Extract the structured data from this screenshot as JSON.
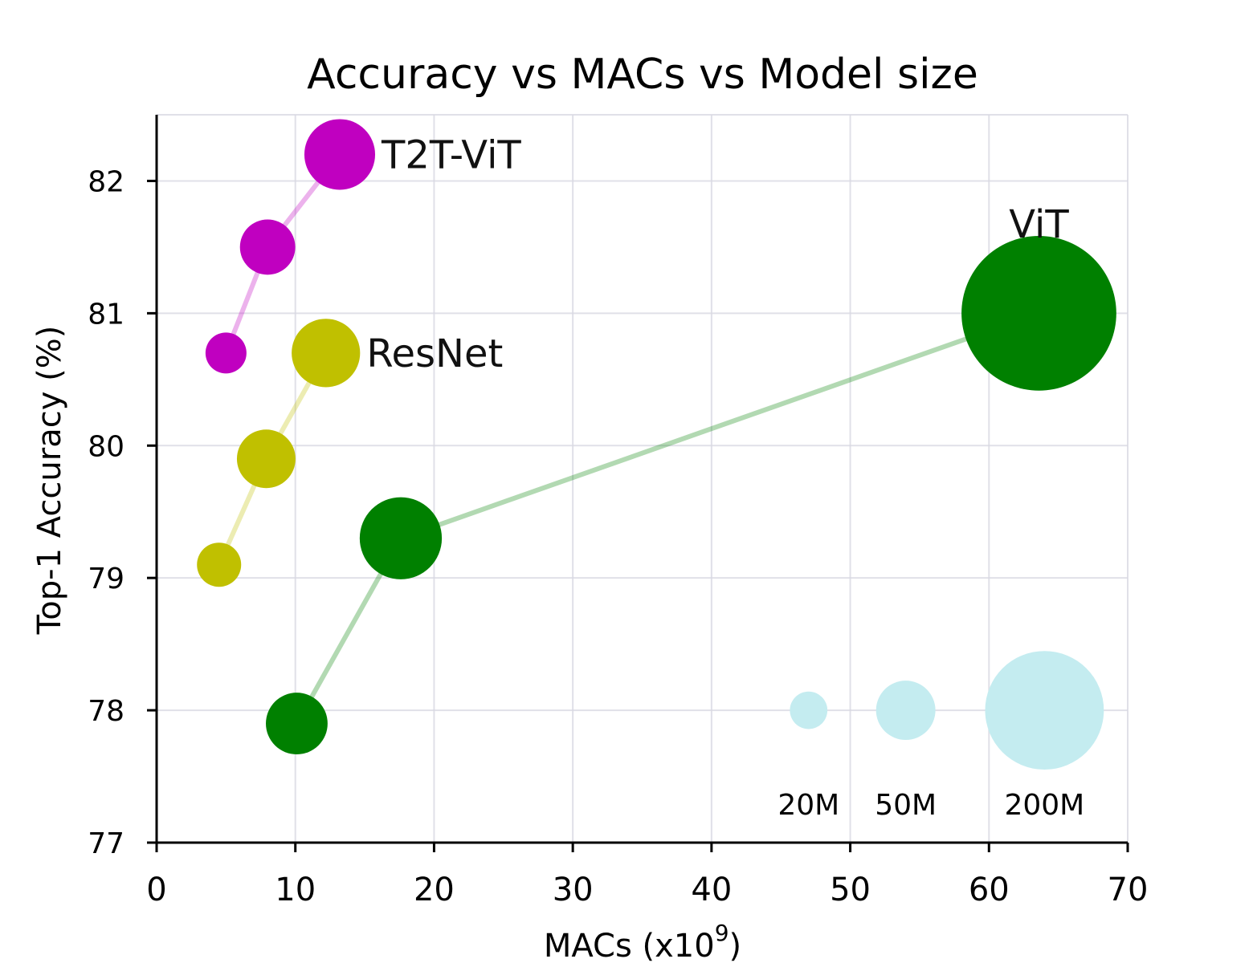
{
  "chart_data": {
    "type": "scatter",
    "title": "Accuracy vs MACs vs Model size",
    "xlabel": "MACs (x10",
    "xlabel_sup": "9",
    "xlabel_close": ")",
    "ylabel": "Top-1 Accuracy (%)",
    "xlim": [
      0,
      70
    ],
    "ylim": [
      77,
      82.5
    ],
    "xticks": [
      0,
      10,
      20,
      30,
      40,
      50,
      60,
      70
    ],
    "yticks": [
      77,
      78,
      79,
      80,
      81,
      82
    ],
    "grid": true,
    "series": [
      {
        "name": "T2T-ViT",
        "color": "#c000c0",
        "points": [
          {
            "x": 5.0,
            "y": 80.7,
            "size_m": 21.5
          },
          {
            "x": 8.0,
            "y": 81.5,
            "size_m": 39.2
          },
          {
            "x": 13.2,
            "y": 82.2,
            "size_m": 64.1
          }
        ]
      },
      {
        "name": "ResNet",
        "color": "#c0c000",
        "points": [
          {
            "x": 4.5,
            "y": 79.1,
            "size_m": 25
          },
          {
            "x": 7.9,
            "y": 79.9,
            "size_m": 44
          },
          {
            "x": 12.2,
            "y": 80.7,
            "size_m": 60
          }
        ]
      },
      {
        "name": "ViT",
        "color": "#008000",
        "points": [
          {
            "x": 10.1,
            "y": 77.9,
            "size_m": 48.8
          },
          {
            "x": 17.6,
            "y": 79.3,
            "size_m": 86.4
          },
          {
            "x": 63.6,
            "y": 81.0,
            "size_m": 307
          }
        ]
      }
    ],
    "size_legend": {
      "color": "#c4ecf0",
      "y": 78.0,
      "items": [
        {
          "label": "20M",
          "x": 47.0,
          "size_m": 20
        },
        {
          "label": "50M",
          "x": 54.0,
          "size_m": 50
        },
        {
          "label": "200M",
          "x": 64.0,
          "size_m": 200
        }
      ]
    }
  }
}
